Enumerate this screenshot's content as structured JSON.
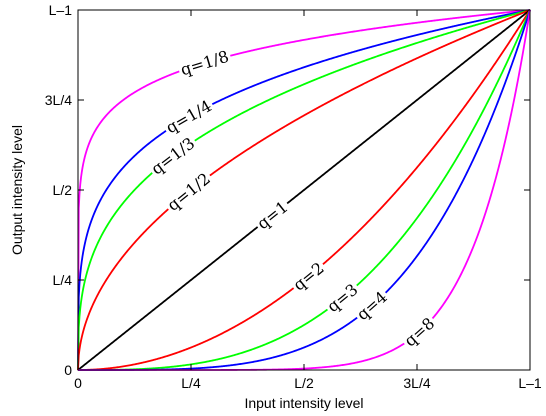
{
  "chart_data": {
    "type": "line",
    "title": "",
    "xlabel": "Input intensity level",
    "ylabel": "Output intensity level",
    "xlim": [
      0,
      1
    ],
    "ylim": [
      0,
      1
    ],
    "grid": false,
    "legend": "inline-labels",
    "function": "y = x^q",
    "x_ticks": [
      {
        "value": 0,
        "label": "0"
      },
      {
        "value": 0.25,
        "label": "L/4"
      },
      {
        "value": 0.5,
        "label": "L/2"
      },
      {
        "value": 0.75,
        "label": "3L/4"
      },
      {
        "value": 1,
        "label": "L–1"
      }
    ],
    "y_ticks": [
      {
        "value": 0,
        "label": "0"
      },
      {
        "value": 0.25,
        "label": "L/4"
      },
      {
        "value": 0.5,
        "label": "L/2"
      },
      {
        "value": 0.75,
        "label": "3L/4"
      },
      {
        "value": 1,
        "label": "L–1"
      }
    ],
    "series": [
      {
        "q": 0.125,
        "label": "q=1/8",
        "color": "#ff00ff",
        "label_x": 0.28
      },
      {
        "q": 0.25,
        "label": "q=1/4",
        "color": "#0000ff",
        "label_x": 0.245
      },
      {
        "q": 0.3333,
        "label": "q=1/3",
        "color": "#00ff00",
        "label_x": 0.21
      },
      {
        "q": 0.5,
        "label": "q=1/2",
        "color": "#ff0000",
        "label_x": 0.245
      },
      {
        "q": 1,
        "label": "q=1",
        "color": "#000000",
        "label_x": 0.43
      },
      {
        "q": 2,
        "label": "q=2",
        "color": "#ff0000",
        "label_x": 0.51
      },
      {
        "q": 3,
        "label": "q=3",
        "color": "#00ff00",
        "label_x": 0.585
      },
      {
        "q": 4,
        "label": "q=4",
        "color": "#0000ff",
        "label_x": 0.65
      },
      {
        "q": 8,
        "label": "q=8",
        "color": "#ff00ff",
        "label_x": 0.755
      }
    ]
  }
}
